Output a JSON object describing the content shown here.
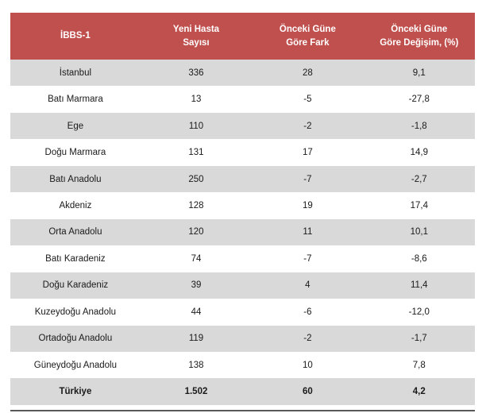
{
  "table": {
    "columns": [
      {
        "label": "İBBS-1"
      },
      {
        "label": "Yeni Hasta Sayısı",
        "line1": "Yeni Hasta",
        "line2": "Sayısı"
      },
      {
        "label": "Önceki Güne Göre Fark",
        "line1": "Önceki Güne",
        "line2": "Göre Fark"
      },
      {
        "label": "Önceki Güne Göre Değişim, (%)",
        "line1": "Önceki Güne",
        "line2": "Göre Değişim, (%)"
      }
    ],
    "rows": [
      {
        "region": "İstanbul",
        "new_cases": "336",
        "diff": "28",
        "pct": "9,1"
      },
      {
        "region": "Batı Marmara",
        "new_cases": "13",
        "diff": "-5",
        "pct": "-27,8"
      },
      {
        "region": "Ege",
        "new_cases": "110",
        "diff": "-2",
        "pct": "-1,8"
      },
      {
        "region": "Doğu Marmara",
        "new_cases": "131",
        "diff": "17",
        "pct": "14,9"
      },
      {
        "region": "Batı Anadolu",
        "new_cases": "250",
        "diff": "-7",
        "pct": "-2,7"
      },
      {
        "region": "Akdeniz",
        "new_cases": "128",
        "diff": "19",
        "pct": "17,4"
      },
      {
        "region": "Orta Anadolu",
        "new_cases": "120",
        "diff": "11",
        "pct": "10,1"
      },
      {
        "region": "Batı Karadeniz",
        "new_cases": "74",
        "diff": "-7",
        "pct": "-8,6"
      },
      {
        "region": "Doğu Karadeniz",
        "new_cases": "39",
        "diff": "4",
        "pct": "11,4"
      },
      {
        "region": "Kuzeydoğu Anadolu",
        "new_cases": "44",
        "diff": "-6",
        "pct": "-12,0"
      },
      {
        "region": "Ortadoğu Anadolu",
        "new_cases": "119",
        "diff": "-2",
        "pct": "-1,7"
      },
      {
        "region": "Güneydoğu Anadolu",
        "new_cases": "138",
        "diff": "10",
        "pct": "7,8"
      },
      {
        "region": "Türkiye",
        "new_cases": "1.502",
        "diff": "60",
        "pct": "4,2",
        "bold": true
      }
    ],
    "colors": {
      "header_bg": "#c0504d",
      "header_text": "#ffffff",
      "row_alt_bg": "#d9d9d9",
      "row_bg": "#ffffff",
      "body_text": "#1a1a1a",
      "bottom_rule": "#595959"
    }
  }
}
